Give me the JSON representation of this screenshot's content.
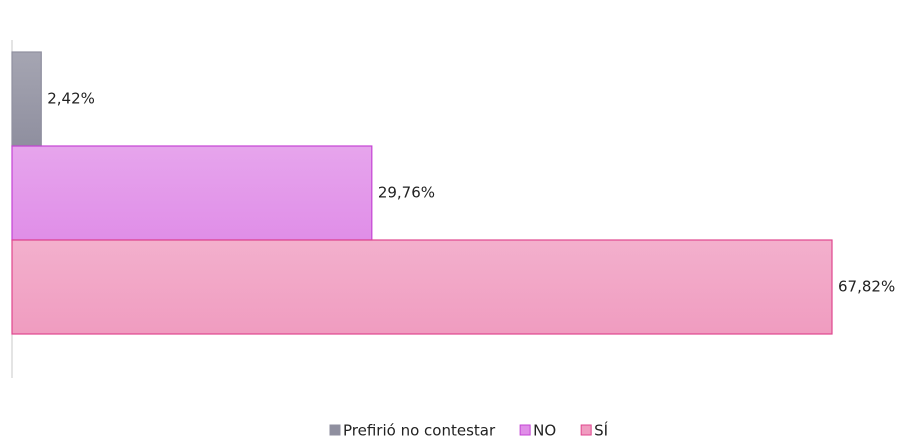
{
  "chart_data": {
    "type": "bar",
    "orientation": "horizontal",
    "series": [
      {
        "name": "Prefirió no contestar",
        "color": "#8f8f9f",
        "border": "#8f8f9f",
        "values": [
          2.42
        ],
        "value_labels": [
          "2,42%"
        ]
      },
      {
        "name": "NO",
        "color": "#e08ee8",
        "border": "#c444d4",
        "values": [
          29.76
        ],
        "value_labels": [
          "29,76%"
        ]
      },
      {
        "name": "SÍ",
        "color": "#f09cc0",
        "border": "#e0468e",
        "values": [
          67.82
        ],
        "value_labels": [
          "67,82%"
        ]
      }
    ],
    "xlim": [
      0,
      75
    ],
    "legend": "bottom"
  }
}
